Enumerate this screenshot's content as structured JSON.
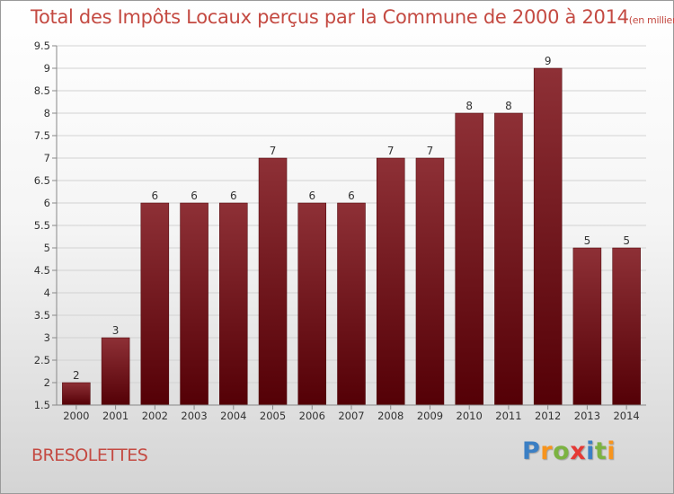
{
  "title": "Total des Impôts Locaux perçus par la Commune de 2000 à 2014",
  "unit": "(en milliers d'€)",
  "commune": "BRESOLETTES",
  "logo": {
    "letters": [
      "P",
      "r",
      "o",
      "x",
      "i",
      "t",
      "i"
    ],
    "colors": [
      "#3b7fc4",
      "#f7941d",
      "#7cb342",
      "#e53935",
      "#3b7fc4",
      "#7cb342",
      "#f7941d"
    ]
  },
  "chart_data": {
    "type": "bar",
    "categories": [
      "2000",
      "2001",
      "2002",
      "2003",
      "2004",
      "2005",
      "2006",
      "2007",
      "2008",
      "2009",
      "2010",
      "2011",
      "2012",
      "2013",
      "2014"
    ],
    "values": [
      2,
      3,
      6,
      6,
      6,
      7,
      6,
      6,
      7,
      7,
      8,
      8,
      9,
      5,
      5
    ],
    "data_labels": [
      "2",
      "3",
      "6",
      "6",
      "6",
      "7",
      "6",
      "6",
      "7",
      "7",
      "8",
      "8",
      "9",
      "5",
      "5"
    ],
    "ylim": [
      1.5,
      9.5
    ],
    "yticks": [
      1.5,
      2,
      2.5,
      3,
      3.5,
      4,
      4.5,
      5,
      5.5,
      6,
      6.5,
      7,
      7.5,
      8,
      8.5,
      9,
      9.5
    ],
    "ytick_labels": [
      "1.5",
      "2",
      "2.5",
      "3",
      "3.5",
      "4",
      "4.5",
      "5",
      "5.5",
      "6",
      "6.5",
      "7",
      "7.5",
      "8",
      "8.5",
      "9",
      "9.5"
    ],
    "bar_color": "#7a1a1e",
    "grid": true,
    "legend": "none"
  }
}
